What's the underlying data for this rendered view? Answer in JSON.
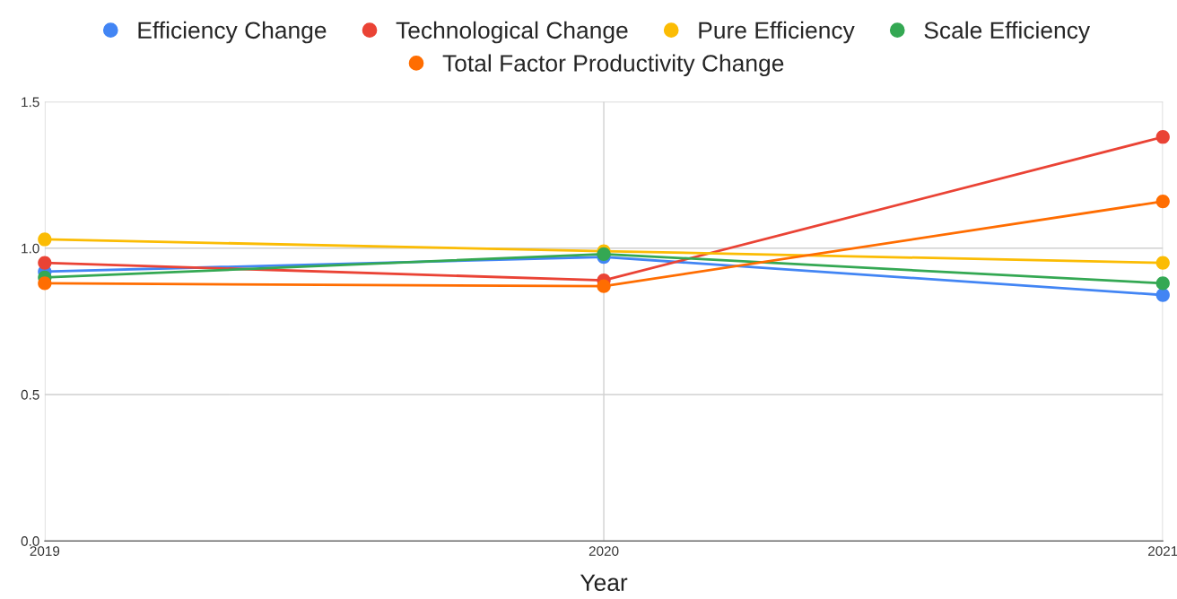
{
  "chart_data": {
    "type": "line",
    "xlabel": "Year",
    "x": [
      2019,
      2020,
      2021
    ],
    "xlim": [
      2019,
      2021
    ],
    "xticks": [
      2019,
      2020,
      2021
    ],
    "ylim": [
      0,
      1.5
    ],
    "yticks": [
      {
        "value": 0,
        "label": "0.0"
      },
      {
        "value": 0.5,
        "label": "0.5"
      },
      {
        "value": 1.0,
        "label": "1.0"
      },
      {
        "value": 1.5,
        "label": "1.5"
      }
    ],
    "grid": true,
    "legend": "top",
    "marker": "circle",
    "line_style": "solid",
    "series": [
      {
        "name": "Efficiency Change",
        "color": "#4285f4",
        "values": [
          0.92,
          0.97,
          0.84
        ]
      },
      {
        "name": "Technological Change",
        "color": "#ea4335",
        "values": [
          0.95,
          0.89,
          1.38
        ]
      },
      {
        "name": "Pure Efficiency",
        "color": "#fbbc04",
        "values": [
          1.03,
          0.99,
          0.95
        ]
      },
      {
        "name": "Scale Efficiency",
        "color": "#34a853",
        "values": [
          0.9,
          0.98,
          0.88
        ]
      },
      {
        "name": "Total Factor Productivity Change",
        "color": "#ff6d01",
        "values": [
          0.88,
          0.87,
          1.16
        ]
      }
    ]
  }
}
